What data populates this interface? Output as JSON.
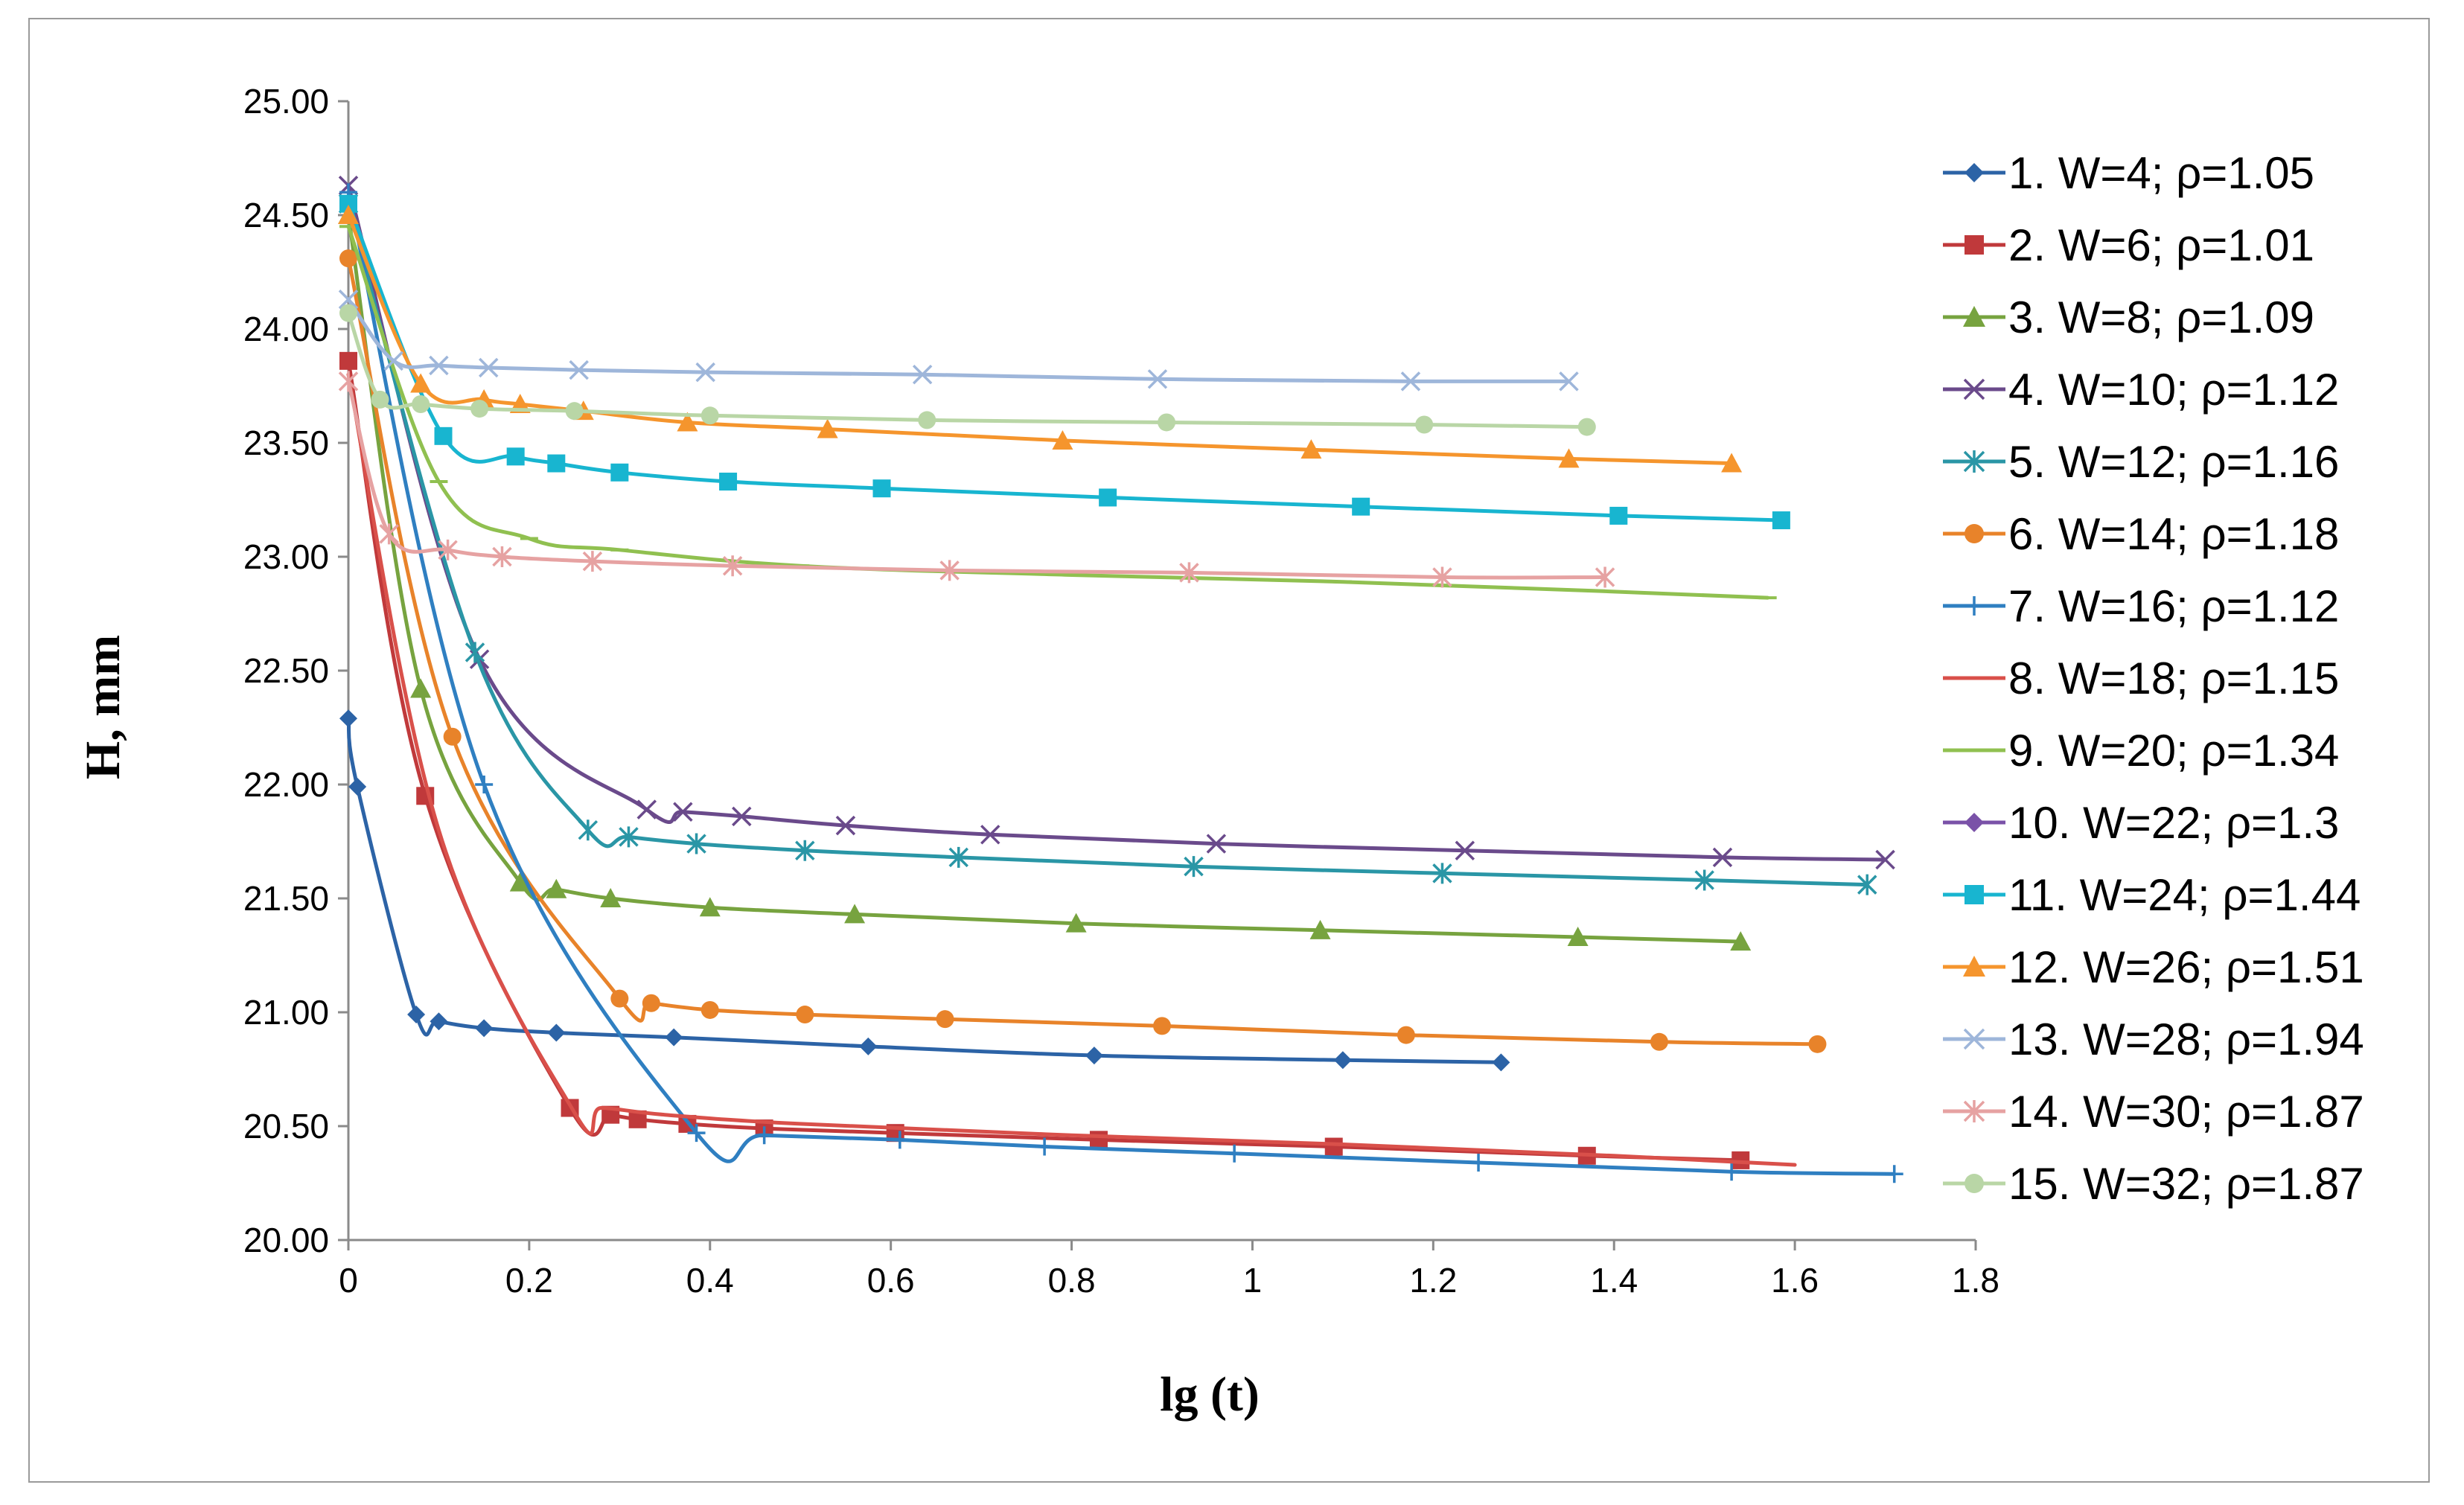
{
  "chart_data": {
    "type": "line",
    "title": "",
    "xlabel": "lg (t)",
    "ylabel": "H, mm",
    "xlim": [
      0,
      1.8
    ],
    "ylim": [
      20.0,
      25.0
    ],
    "x_ticks": [
      "0",
      "0.2",
      "0.4",
      "0.6",
      "0.8",
      "1",
      "1.2",
      "1.4",
      "1.6",
      "1.8"
    ],
    "y_ticks": [
      "20.00",
      "20.50",
      "21.00",
      "21.50",
      "22.00",
      "22.50",
      "23.00",
      "23.50",
      "24.00",
      "24.50",
      "25.00"
    ],
    "grid": false,
    "legend_position": "right",
    "series": [
      {
        "name": "1. W=4; ρ=1.05",
        "color": "#2c63a6",
        "marker": "diamond",
        "points": [
          [
            0,
            22.29
          ],
          [
            0.01,
            21.99
          ],
          [
            0.075,
            20.99
          ],
          [
            0.1,
            20.96
          ],
          [
            0.15,
            20.93
          ],
          [
            0.23,
            20.91
          ],
          [
            0.36,
            20.89
          ],
          [
            0.575,
            20.85
          ],
          [
            0.825,
            20.81
          ],
          [
            1.1,
            20.79
          ],
          [
            1.275,
            20.78
          ]
        ]
      },
      {
        "name": "2. W=6; ρ=1.01",
        "color": "#c0393b",
        "marker": "square",
        "points": [
          [
            0,
            23.86
          ],
          [
            0.085,
            21.95
          ],
          [
            0.245,
            20.58
          ],
          [
            0.29,
            20.55
          ],
          [
            0.32,
            20.53
          ],
          [
            0.375,
            20.51
          ],
          [
            0.46,
            20.49
          ],
          [
            0.605,
            20.47
          ],
          [
            0.83,
            20.44
          ],
          [
            1.09,
            20.41
          ],
          [
            1.37,
            20.37
          ],
          [
            1.54,
            20.35
          ]
        ]
      },
      {
        "name": "3. W=8; ρ=1.09",
        "color": "#77a33f",
        "marker": "triangle",
        "points": [
          [
            0,
            24.5
          ],
          [
            0.08,
            22.42
          ],
          [
            0.19,
            21.57
          ],
          [
            0.23,
            21.54
          ],
          [
            0.29,
            21.5
          ],
          [
            0.4,
            21.46
          ],
          [
            0.56,
            21.43
          ],
          [
            0.805,
            21.39
          ],
          [
            1.075,
            21.36
          ],
          [
            1.36,
            21.33
          ],
          [
            1.54,
            21.31
          ]
        ]
      },
      {
        "name": "4. W=10; ρ=1.12",
        "color": "#6a4a8b",
        "marker": "x",
        "points": [
          [
            0,
            24.63
          ],
          [
            0.145,
            22.55
          ],
          [
            0.33,
            21.89
          ],
          [
            0.37,
            21.88
          ],
          [
            0.435,
            21.86
          ],
          [
            0.55,
            21.82
          ],
          [
            0.71,
            21.78
          ],
          [
            0.96,
            21.74
          ],
          [
            1.235,
            21.71
          ],
          [
            1.52,
            21.68
          ],
          [
            1.7,
            21.67
          ]
        ]
      },
      {
        "name": "5. W=12; ρ=1.16",
        "color": "#2a96a6",
        "marker": "asterisk",
        "points": [
          [
            0,
            24.55
          ],
          [
            0.14,
            22.58
          ],
          [
            0.265,
            21.8
          ],
          [
            0.31,
            21.77
          ],
          [
            0.385,
            21.74
          ],
          [
            0.505,
            21.71
          ],
          [
            0.675,
            21.68
          ],
          [
            0.935,
            21.64
          ],
          [
            1.21,
            21.61
          ],
          [
            1.5,
            21.58
          ],
          [
            1.68,
            21.56
          ]
        ]
      },
      {
        "name": "6. W=14; ρ=1.18",
        "color": "#e8832a",
        "marker": "circle",
        "points": [
          [
            0,
            24.31
          ],
          [
            0.115,
            22.21
          ],
          [
            0.3,
            21.06
          ],
          [
            0.335,
            21.04
          ],
          [
            0.4,
            21.01
          ],
          [
            0.505,
            20.99
          ],
          [
            0.66,
            20.97
          ],
          [
            0.9,
            20.94
          ],
          [
            1.17,
            20.9
          ],
          [
            1.45,
            20.87
          ],
          [
            1.625,
            20.86
          ]
        ]
      },
      {
        "name": "7. W=16; ρ=1.12",
        "color": "#2f7fc1",
        "marker": "plus",
        "points": [
          [
            0,
            24.6
          ],
          [
            0.15,
            22.0
          ],
          [
            0.385,
            20.47
          ],
          [
            0.46,
            20.46
          ],
          [
            0.61,
            20.44
          ],
          [
            0.77,
            20.41
          ],
          [
            0.98,
            20.38
          ],
          [
            1.25,
            20.34
          ],
          [
            1.53,
            20.3
          ],
          [
            1.71,
            20.29
          ]
        ]
      },
      {
        "name": "8. W=18; ρ=1.15",
        "color": "#d9504a",
        "marker": "none",
        "points": [
          [
            0,
            23.8
          ],
          [
            0.1,
            21.8
          ],
          [
            0.25,
            20.56
          ],
          [
            0.28,
            20.58
          ],
          [
            0.35,
            20.55
          ],
          [
            0.5,
            20.51
          ],
          [
            0.8,
            20.46
          ],
          [
            1.1,
            20.42
          ],
          [
            1.4,
            20.37
          ],
          [
            1.6,
            20.33
          ]
        ]
      },
      {
        "name": "9. W=20; ρ=1.34",
        "color": "#90c050",
        "marker": "dash",
        "points": [
          [
            0,
            24.45
          ],
          [
            0.1,
            23.33
          ],
          [
            0.2,
            23.08
          ],
          [
            0.3,
            23.03
          ],
          [
            0.5,
            22.96
          ],
          [
            0.8,
            22.92
          ],
          [
            1.1,
            22.89
          ],
          [
            1.38,
            22.85
          ],
          [
            1.57,
            22.82
          ]
        ]
      },
      {
        "name": "10. W=22; ρ=1.3",
        "color": "#7a52a8",
        "marker": "diamond",
        "points": []
      },
      {
        "name": "11. W=24; ρ=1.44",
        "color": "#18b5d0",
        "marker": "square",
        "points": [
          [
            0,
            24.55
          ],
          [
            0.105,
            23.53
          ],
          [
            0.185,
            23.44
          ],
          [
            0.23,
            23.41
          ],
          [
            0.3,
            23.37
          ],
          [
            0.42,
            23.33
          ],
          [
            0.59,
            23.3
          ],
          [
            0.84,
            23.26
          ],
          [
            1.12,
            23.22
          ],
          [
            1.405,
            23.18
          ],
          [
            1.585,
            23.16
          ]
        ]
      },
      {
        "name": "12. W=26; ρ=1.51",
        "color": "#f5952d",
        "marker": "triangle",
        "points": [
          [
            0,
            24.5
          ],
          [
            0.08,
            23.76
          ],
          [
            0.15,
            23.69
          ],
          [
            0.19,
            23.67
          ],
          [
            0.26,
            23.64
          ],
          [
            0.375,
            23.59
          ],
          [
            0.53,
            23.56
          ],
          [
            0.79,
            23.51
          ],
          [
            1.065,
            23.47
          ],
          [
            1.35,
            23.43
          ],
          [
            1.53,
            23.41
          ]
        ]
      },
      {
        "name": "13. W=28; ρ=1.94",
        "color": "#9eb6da",
        "marker": "x",
        "points": [
          [
            0,
            24.13
          ],
          [
            0.05,
            23.86
          ],
          [
            0.1,
            23.84
          ],
          [
            0.155,
            23.83
          ],
          [
            0.255,
            23.82
          ],
          [
            0.395,
            23.81
          ],
          [
            0.635,
            23.8
          ],
          [
            0.895,
            23.78
          ],
          [
            1.175,
            23.77
          ],
          [
            1.35,
            23.77
          ]
        ]
      },
      {
        "name": "14. W=30; ρ=1.87",
        "color": "#e6a2a2",
        "marker": "asterisk",
        "points": [
          [
            0,
            23.77
          ],
          [
            0.045,
            23.1
          ],
          [
            0.11,
            23.03
          ],
          [
            0.17,
            23.0
          ],
          [
            0.27,
            22.98
          ],
          [
            0.425,
            22.96
          ],
          [
            0.665,
            22.94
          ],
          [
            0.93,
            22.93
          ],
          [
            1.21,
            22.91
          ],
          [
            1.39,
            22.91
          ]
        ]
      },
      {
        "name": "15. W=32; ρ=1.87",
        "color": "#b9d6a6",
        "marker": "circle",
        "points": [
          [
            0,
            24.07
          ],
          [
            0.035,
            23.69
          ],
          [
            0.08,
            23.67
          ],
          [
            0.145,
            23.65
          ],
          [
            0.25,
            23.64
          ],
          [
            0.4,
            23.62
          ],
          [
            0.64,
            23.6
          ],
          [
            0.905,
            23.59
          ],
          [
            1.19,
            23.58
          ],
          [
            1.37,
            23.57
          ]
        ]
      }
    ]
  }
}
